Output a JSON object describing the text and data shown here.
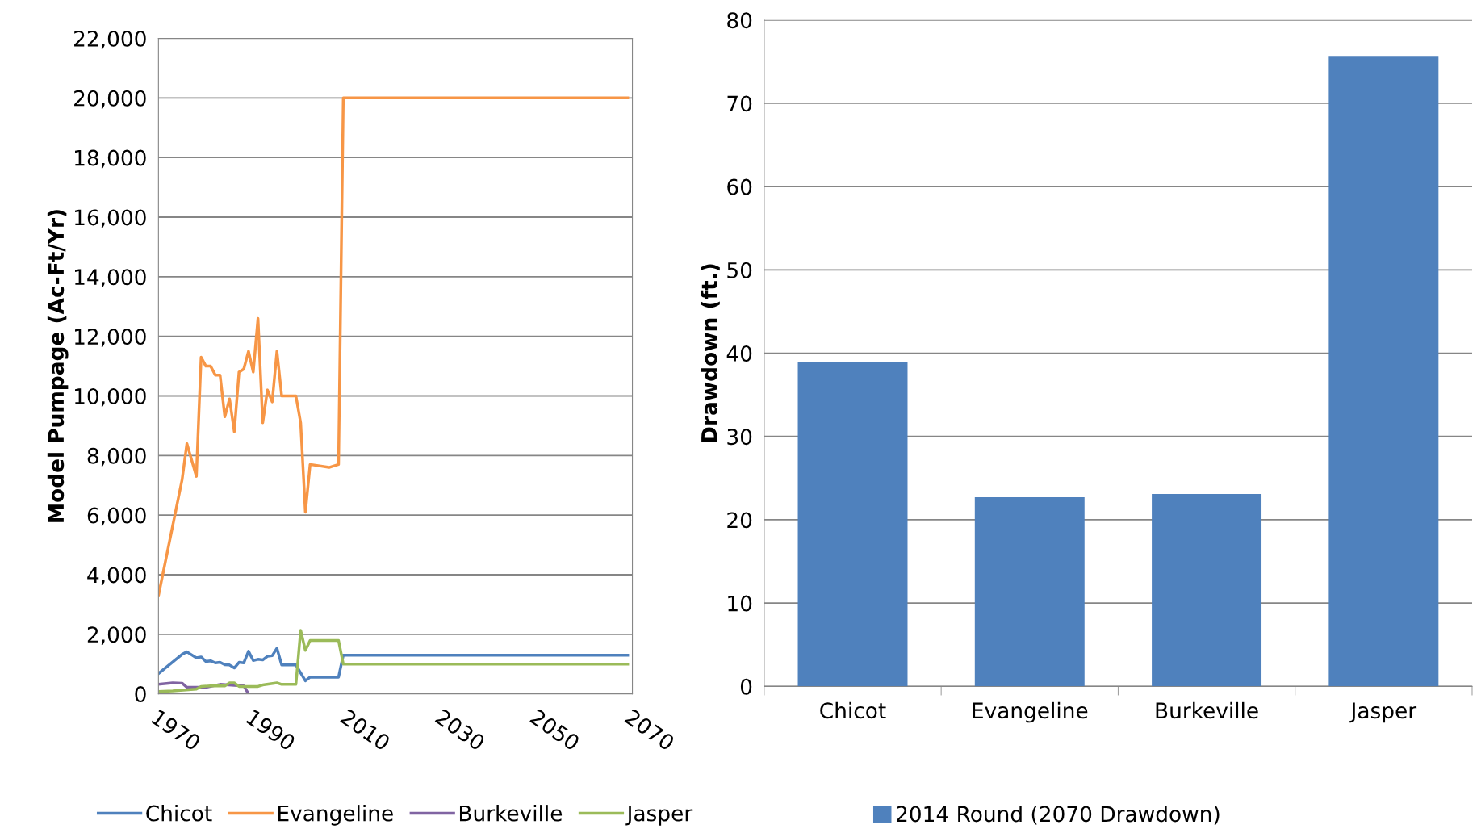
{
  "chart_data": [
    {
      "type": "line",
      "ylabel": "Model Pumpage (Ac-Ft/Yr)",
      "xlim": [
        1970,
        2070
      ],
      "xticks": [
        1970,
        1990,
        2010,
        2030,
        2050,
        2070
      ],
      "ylim": [
        0,
        22000
      ],
      "yticks": [
        {
          "value": 0,
          "label": "0"
        },
        {
          "value": 2000,
          "label": "2,000"
        },
        {
          "value": 4000,
          "label": "4,000"
        },
        {
          "value": 6000,
          "label": "6,000"
        },
        {
          "value": 8000,
          "label": "8,000"
        },
        {
          "value": 10000,
          "label": "10,000"
        },
        {
          "value": 12000,
          "label": "12,000"
        },
        {
          "value": 14000,
          "label": "14,000"
        },
        {
          "value": 16000,
          "label": "16,000"
        },
        {
          "value": 18000,
          "label": "18,000"
        },
        {
          "value": 20000,
          "label": "20,000"
        },
        {
          "value": 22000,
          "label": "22,000"
        }
      ],
      "grid": "y",
      "legend": "bottom",
      "marker": "none",
      "line_style": "solid",
      "series": [
        {
          "name": "Chicot",
          "color": "#4f81bd",
          "x": [
            1970,
            1975,
            1976,
            1978,
            1979,
            1980,
            1981,
            1982,
            1983,
            1984,
            1985,
            1986,
            1987,
            1988,
            1989,
            1990,
            1991,
            1992,
            1993,
            1994,
            1995,
            1996,
            1999,
            2001,
            2002,
            2008,
            2009,
            2069
          ],
          "values": [
            680,
            1330,
            1410,
            1210,
            1240,
            1090,
            1110,
            1040,
            1060,
            980,
            970,
            870,
            1060,
            1040,
            1430,
            1120,
            1160,
            1140,
            1260,
            1280,
            1530,
            970,
            970,
            440,
            560,
            560,
            1300,
            1300
          ]
        },
        {
          "name": "Evangeline",
          "color": "#f79646",
          "x": [
            1970,
            1975,
            1976,
            1978,
            1979,
            1980,
            1981,
            1982,
            1983,
            1984,
            1985,
            1986,
            1987,
            1988,
            1989,
            1990,
            1991,
            1992,
            1993,
            1994,
            1995,
            1996,
            1999,
            2000,
            2001,
            2002,
            2006,
            2008,
            2009,
            2069
          ],
          "values": [
            3300,
            7200,
            8400,
            7300,
            11300,
            11000,
            11000,
            10700,
            10700,
            9300,
            9900,
            8800,
            10800,
            10900,
            11500,
            10800,
            12600,
            9100,
            10200,
            9800,
            11500,
            10000,
            10000,
            9100,
            6100,
            7700,
            7600,
            7700,
            20000,
            20000
          ]
        },
        {
          "name": "Burkeville",
          "color": "#8064a2",
          "x": [
            1970,
            1973,
            1975,
            1976,
            1980,
            1983,
            1986,
            1988,
            1989,
            2069
          ],
          "values": [
            320,
            370,
            360,
            220,
            220,
            320,
            290,
            270,
            0,
            0
          ]
        },
        {
          "name": "Jasper",
          "color": "#9bbb59",
          "x": [
            1970,
            1973,
            1978,
            1979,
            1981,
            1984,
            1985,
            1986,
            1987,
            1991,
            1992,
            1995,
            1996,
            1999,
            2000,
            2001,
            2002,
            2008,
            2009,
            2069
          ],
          "values": [
            80,
            100,
            160,
            250,
            270,
            270,
            370,
            370,
            250,
            250,
            300,
            370,
            320,
            320,
            2130,
            1460,
            1790,
            1790,
            1000,
            1000
          ]
        }
      ]
    },
    {
      "type": "bar",
      "ylabel": "Drawdown (ft.)",
      "categories": [
        "Chicot",
        "Evangeline",
        "Burkeville",
        "Jasper"
      ],
      "ylim": [
        0,
        80
      ],
      "yticks": [
        0,
        10,
        20,
        30,
        40,
        50,
        60,
        70,
        80
      ],
      "grid": "y",
      "legend": "bottom",
      "series": [
        {
          "name": "2014 Round (2070 Drawdown)",
          "color": "#4f81bd",
          "values": [
            39.0,
            22.7,
            23.1,
            75.7
          ]
        }
      ]
    }
  ]
}
